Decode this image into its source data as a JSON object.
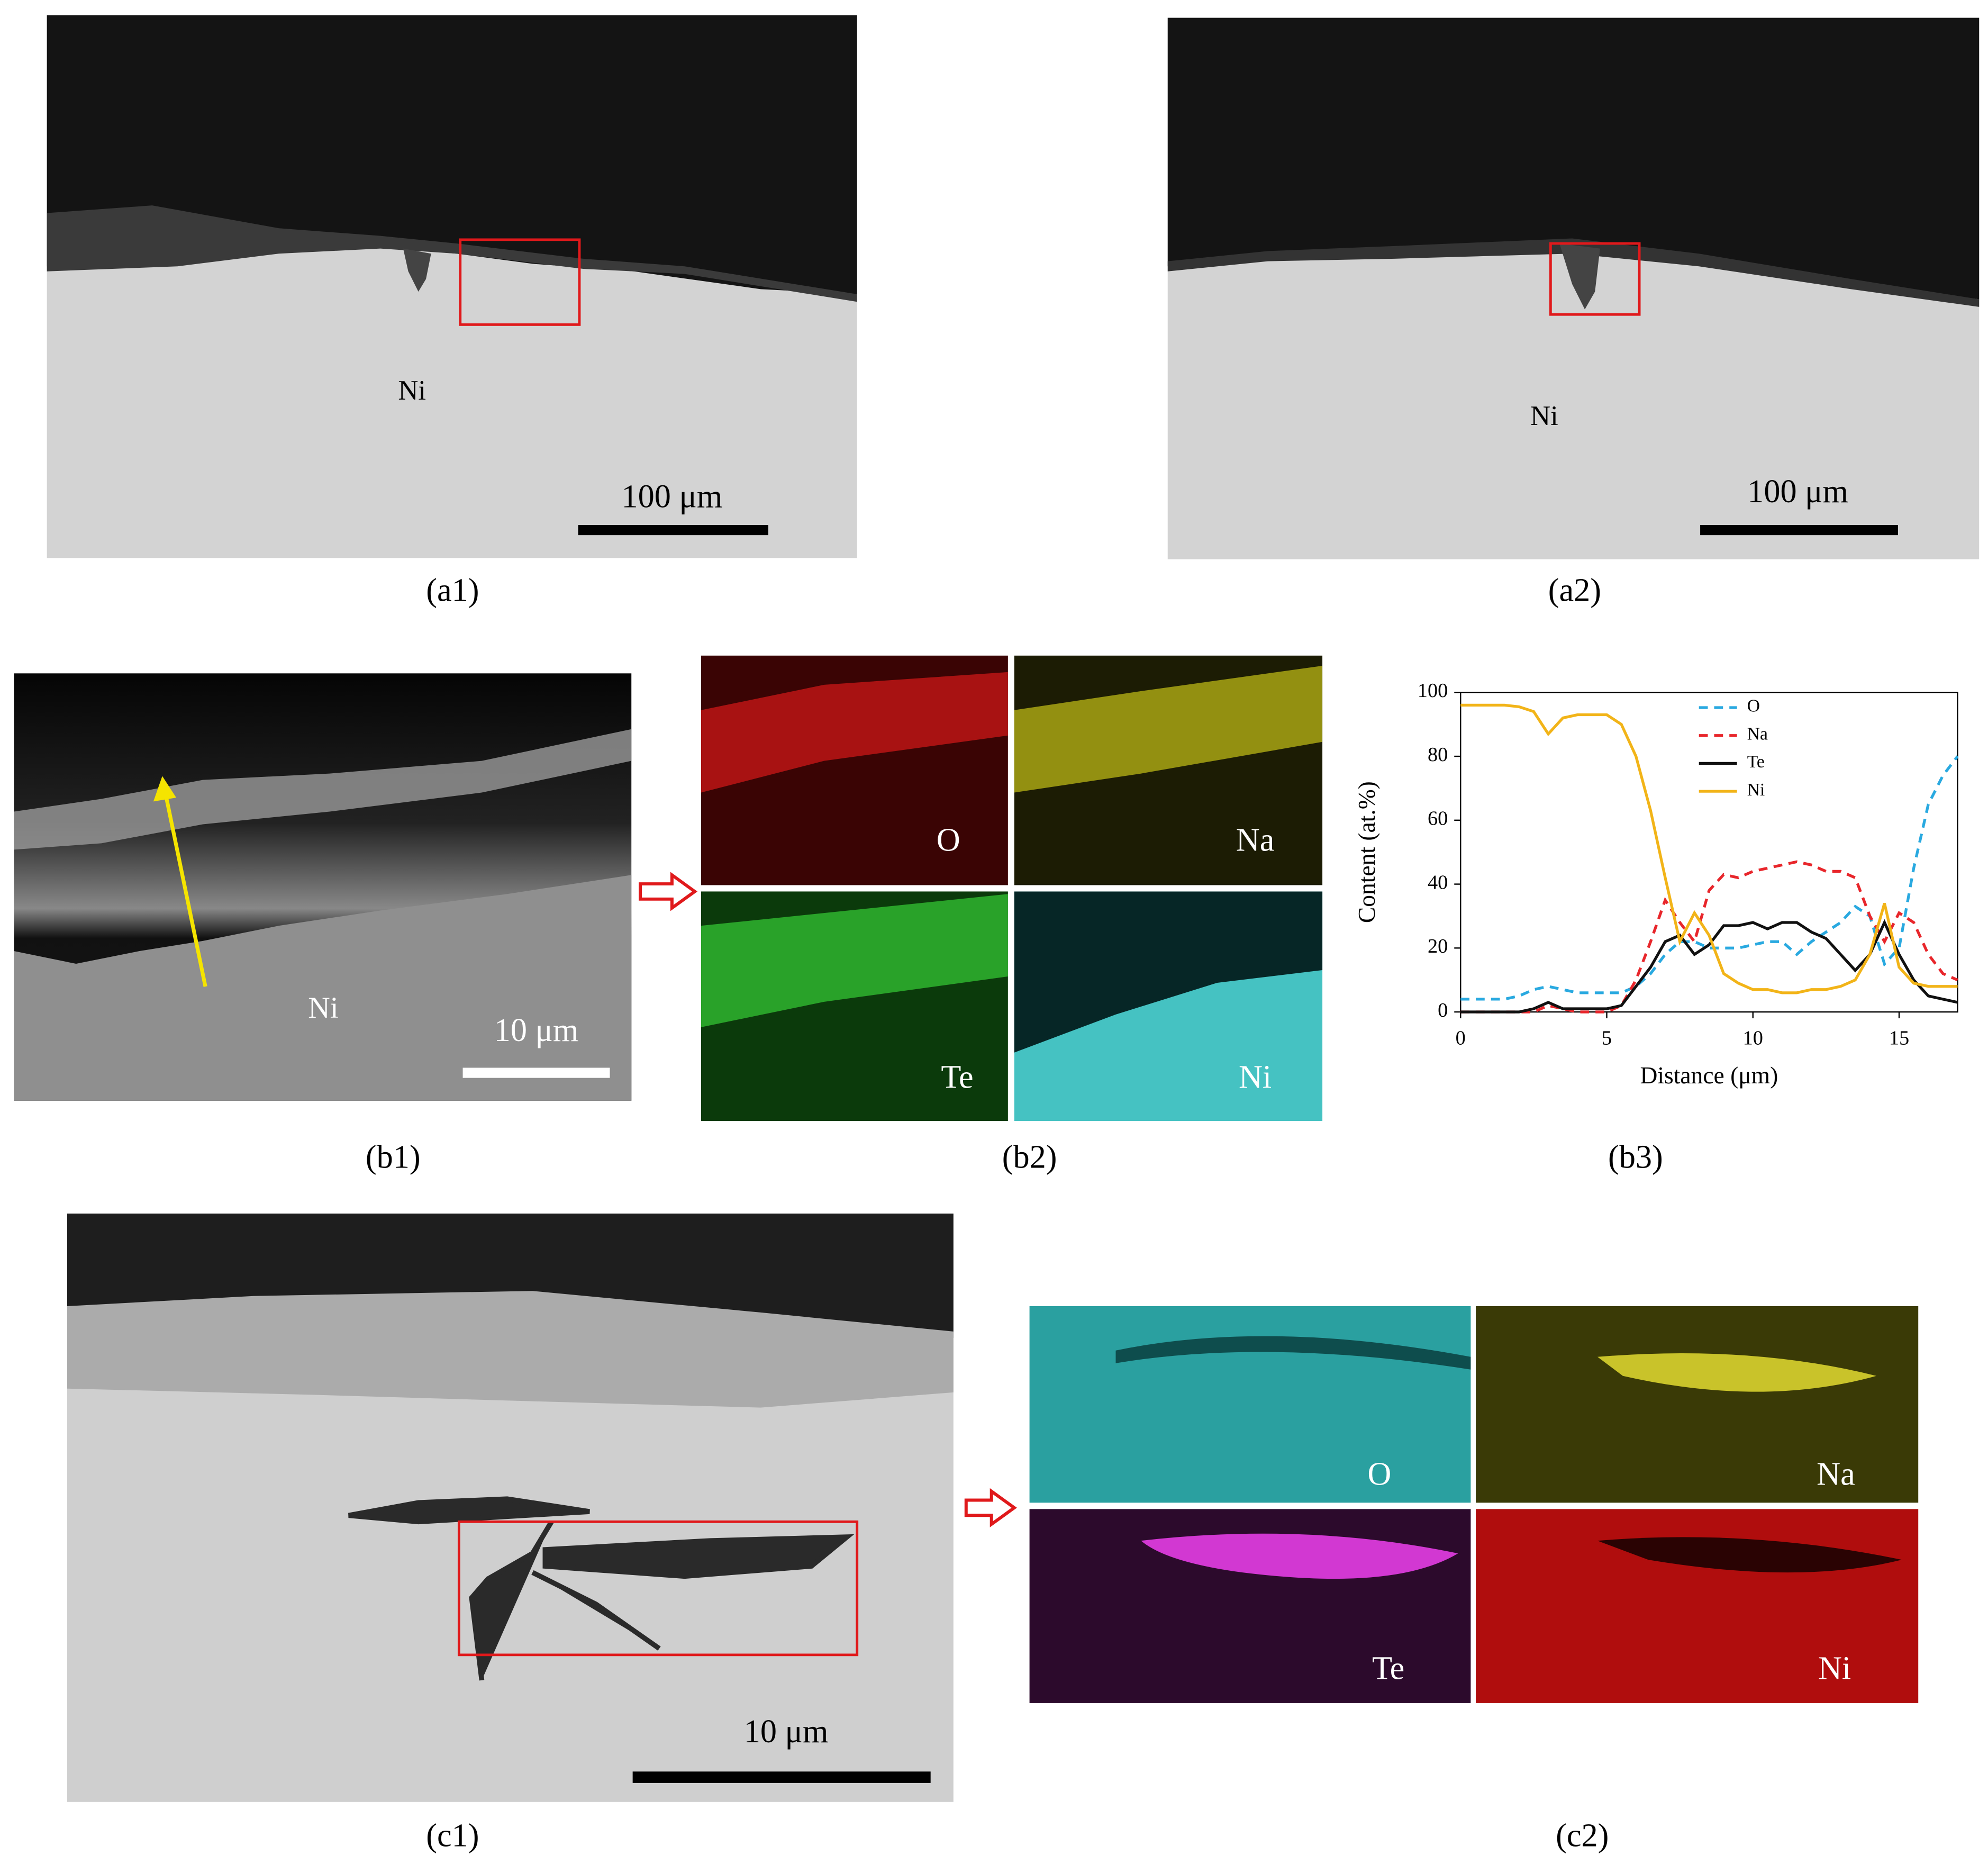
{
  "panels": {
    "a1": {
      "label": "(a1)",
      "material": "Ni",
      "scale_bar": "100 μm"
    },
    "a2": {
      "label": "(a2)",
      "material": "Ni",
      "scale_bar": "100 μm"
    },
    "b1": {
      "label": "(b1)",
      "material": "Ni",
      "scale_bar": "10 μm"
    },
    "b2": {
      "label": "(b2)",
      "maps": [
        "O",
        "Na",
        "Te",
        "Ni"
      ]
    },
    "b3": {
      "label": "(b3)"
    },
    "c1": {
      "label": "(c1)",
      "scale_bar": "10 μm"
    },
    "c2": {
      "label": "(c2)",
      "maps": [
        "O",
        "Na",
        "Te",
        "Ni"
      ]
    }
  },
  "chart_data": {
    "type": "line",
    "x_label": "Distance (μm)",
    "y_label": "Content (at.%)",
    "x": [
      0,
      0.5,
      1,
      1.5,
      2,
      2.5,
      3,
      3.5,
      4,
      4.5,
      5,
      5.5,
      6,
      6.5,
      7,
      7.5,
      8,
      8.5,
      9,
      9.5,
      10,
      10.5,
      11,
      11.5,
      12,
      12.5,
      13,
      13.5,
      14,
      14.5,
      15,
      15.5,
      16,
      16.5,
      17
    ],
    "series": [
      {
        "name": "O",
        "color": "#29a9e0",
        "dashed": true,
        "values": [
          4,
          4,
          4,
          4,
          5,
          7,
          8,
          7,
          6,
          6,
          6,
          6,
          8,
          12,
          18,
          22,
          22,
          20,
          20,
          20,
          21,
          22,
          22,
          18,
          22,
          25,
          28,
          33,
          30,
          15,
          20,
          45,
          65,
          74,
          80
        ]
      },
      {
        "name": "Na",
        "color": "#e8262b",
        "dashed": true,
        "values": [
          0,
          0,
          0,
          0,
          0,
          0,
          2,
          1,
          0,
          0,
          0,
          2,
          10,
          22,
          35,
          28,
          22,
          38,
          43,
          42,
          44,
          45,
          46,
          47,
          46,
          44,
          44,
          42,
          30,
          22,
          31,
          28,
          18,
          12,
          10
        ]
      },
      {
        "name": "Te",
        "color": "#111111",
        "dashed": false,
        "values": [
          0,
          0,
          0,
          0,
          0,
          1,
          3,
          1,
          1,
          1,
          1,
          2,
          8,
          14,
          22,
          24,
          18,
          21,
          27,
          27,
          28,
          26,
          28,
          28,
          25,
          23,
          18,
          13,
          18,
          28,
          18,
          10,
          5,
          4,
          3
        ]
      },
      {
        "name": "Ni",
        "color": "#f2b418",
        "dashed": false,
        "values": [
          96,
          96,
          96,
          96,
          95.5,
          94,
          87,
          92,
          93,
          93,
          93,
          90,
          80,
          63,
          42,
          22,
          31,
          24,
          12,
          9,
          7,
          7,
          6,
          6,
          7,
          7,
          8,
          10,
          18,
          34,
          14,
          9,
          8,
          8,
          8
        ]
      }
    ],
    "xlim": [
      0,
      17
    ],
    "ylim": [
      0,
      100
    ],
    "xticks": [
      0,
      5,
      10,
      15
    ],
    "yticks": [
      0,
      20,
      40,
      60,
      80,
      100
    ],
    "legend": "upper-right"
  }
}
